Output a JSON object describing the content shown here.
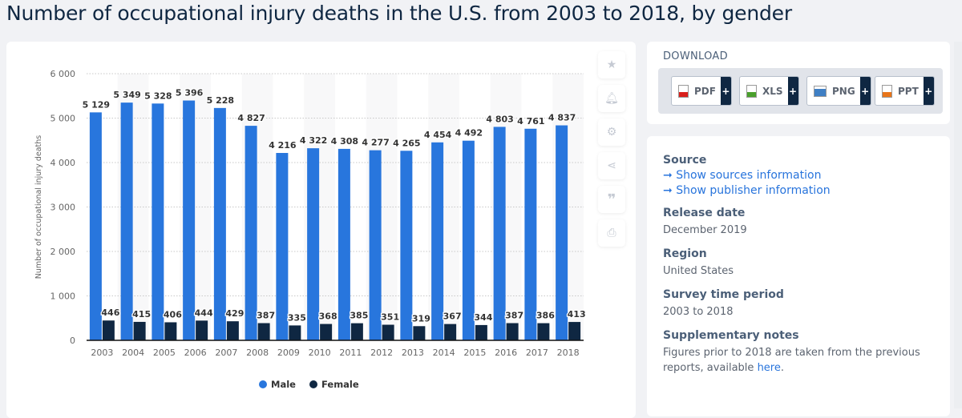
{
  "title": "Number of occupational injury deaths in the U.S. from 2003 to 2018, by gender",
  "toolbar": {
    "icons": [
      "star-icon",
      "bell-icon",
      "gear-icon",
      "share-icon",
      "quote-icon",
      "print-icon"
    ]
  },
  "download": {
    "title": "DOWNLOAD",
    "buttons": [
      {
        "label": "PDF",
        "color": "#d9201c"
      },
      {
        "label": "XLS",
        "color": "#4aa02c"
      },
      {
        "label": "PNG",
        "color": "#3f7fc4"
      },
      {
        "label": "PPT",
        "color": "#e8751a"
      }
    ],
    "plus": "+"
  },
  "info": {
    "source_heading": "Source",
    "source_link": "Show sources information",
    "publisher_link": "Show publisher information",
    "arrow": "➞",
    "release_heading": "Release date",
    "release_value": "December 2019",
    "region_heading": "Region",
    "region_value": "United States",
    "period_heading": "Survey time period",
    "period_value": "2003 to 2018",
    "notes_heading": "Supplementary notes",
    "notes_text": "Figures prior to 2018 are taken from the previous reports, available ",
    "notes_link": "here",
    "notes_end": "."
  },
  "chart_data": {
    "type": "bar",
    "categories": [
      "2003",
      "2004",
      "2005",
      "2006",
      "2007",
      "2008",
      "2009",
      "2010",
      "2011",
      "2012",
      "2013",
      "2014",
      "2015",
      "2016",
      "2017",
      "2018"
    ],
    "series": [
      {
        "name": "Male",
        "color": "#2876dd",
        "values": [
          5129,
          5349,
          5328,
          5396,
          5228,
          4827,
          4216,
          4322,
          4308,
          4277,
          4265,
          4454,
          4492,
          4803,
          4761,
          4837
        ]
      },
      {
        "name": "Female",
        "color": "#0f2742",
        "values": [
          446,
          415,
          406,
          444,
          429,
          387,
          335,
          368,
          385,
          351,
          319,
          367,
          344,
          387,
          386,
          413
        ]
      }
    ],
    "ylabel": "Number of occupational injury deaths",
    "xlabel": "",
    "ylim": [
      0,
      6000
    ],
    "yticks": [
      "0",
      "1 000",
      "2 000",
      "3 000",
      "4 000",
      "5 000",
      "6 000"
    ],
    "grid": true,
    "legend": "bottom"
  }
}
